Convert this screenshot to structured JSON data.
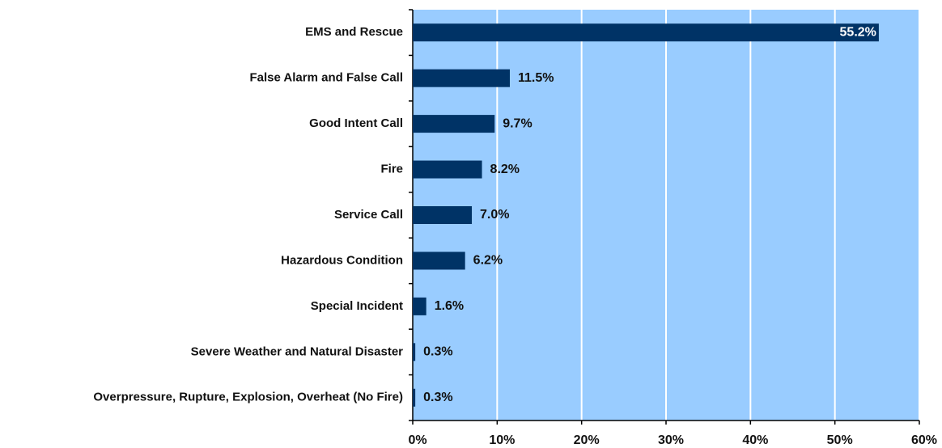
{
  "chart_data": {
    "type": "bar",
    "orientation": "horizontal",
    "categories": [
      "EMS and Rescue",
      "False Alarm and False Call",
      "Good Intent Call",
      "Fire",
      "Service Call",
      "Hazardous Condition",
      "Special Incident",
      "Severe Weather and Natural Disaster",
      "Overpressure, Rupture, Explosion, Overheat (No Fire)"
    ],
    "values": [
      55.2,
      11.5,
      9.7,
      8.2,
      7.0,
      6.2,
      1.6,
      0.3,
      0.3
    ],
    "value_labels": [
      "55.2%",
      "11.5%",
      "9.7%",
      "8.2%",
      "7.0%",
      "6.2%",
      "1.6%",
      "0.3%",
      "0.3%"
    ],
    "color": "#003366",
    "plot_background": "#99ccff",
    "grid": true,
    "xlim": [
      0,
      60
    ],
    "xticks": [
      {
        "value": 0,
        "label": "0%"
      },
      {
        "value": 10,
        "label": "10%"
      },
      {
        "value": 20,
        "label": "20%"
      },
      {
        "value": 30,
        "label": "30%"
      },
      {
        "value": 40,
        "label": "40%"
      },
      {
        "value": 50,
        "label": "50%"
      },
      {
        "value": 60,
        "label": "60%"
      }
    ]
  }
}
